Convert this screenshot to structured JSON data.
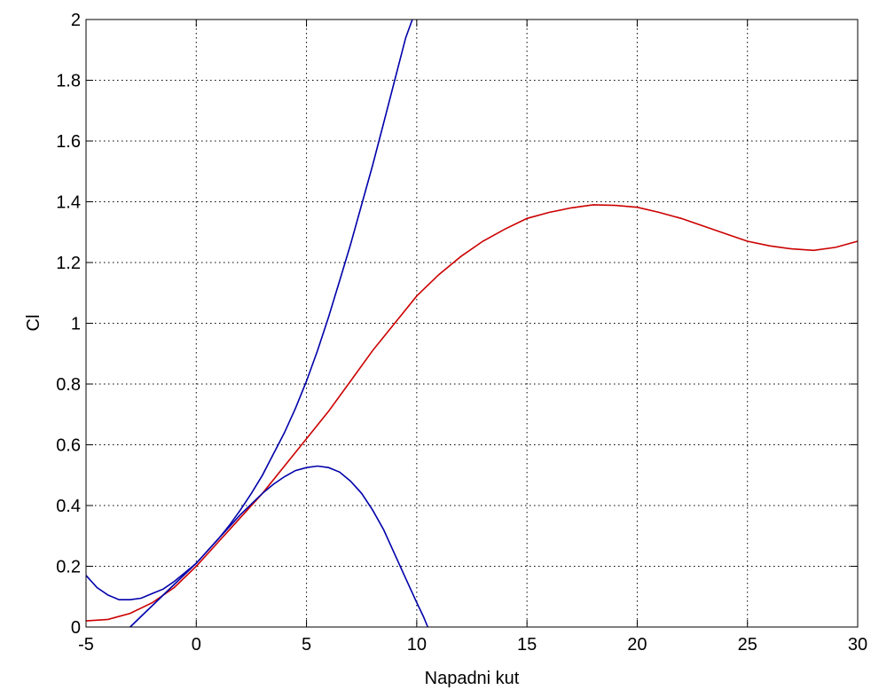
{
  "chart_data": {
    "type": "line",
    "title": "",
    "xlabel": "Napadni kut",
    "ylabel": "Cl",
    "xlim": [
      -5,
      30
    ],
    "ylim": [
      0,
      2
    ],
    "xticks": [
      -5,
      0,
      5,
      10,
      15,
      20,
      25,
      30
    ],
    "xtick_labels": [
      "-5",
      "0",
      "5",
      "10",
      "15",
      "20",
      "25",
      "30"
    ],
    "yticks": [
      0,
      0.2,
      0.4,
      0.6,
      0.8,
      1,
      1.2,
      1.4,
      1.6,
      1.8,
      2
    ],
    "ytick_labels": [
      "0",
      "0.2",
      "0.4",
      "0.6",
      "0.8",
      "1",
      "1.2",
      "1.4",
      "1.6",
      "1.8",
      "2"
    ],
    "grid": true,
    "colors": {
      "red": "#cc0000",
      "blue": "#0000aa",
      "grid": "#000000",
      "axes": "#000000"
    },
    "series": [
      {
        "color": "#cc0000",
        "x": [
          -5,
          -4,
          -3,
          -2,
          -1,
          0,
          1,
          2,
          3,
          4,
          5,
          6,
          7,
          8,
          9,
          10,
          11,
          12,
          13,
          14,
          15,
          16,
          17,
          18,
          19,
          20,
          21,
          22,
          23,
          24,
          25,
          26,
          27,
          28,
          29,
          30
        ],
        "y": [
          0.02,
          0.025,
          0.045,
          0.08,
          0.13,
          0.2,
          0.28,
          0.36,
          0.44,
          0.53,
          0.62,
          0.71,
          0.81,
          0.91,
          1.0,
          1.09,
          1.16,
          1.22,
          1.27,
          1.31,
          1.345,
          1.365,
          1.38,
          1.39,
          1.388,
          1.382,
          1.365,
          1.345,
          1.32,
          1.295,
          1.27,
          1.255,
          1.245,
          1.24,
          1.25,
          1.27
        ]
      },
      {
        "color": "#0000aa",
        "x": [
          -5,
          -4.5,
          -4,
          -3.5,
          -3,
          -2.5,
          -2,
          -1.5,
          -1,
          -0.5,
          0,
          0.5,
          1,
          1.5,
          2,
          2.5,
          3,
          3.5,
          4,
          4.5,
          5,
          5.5,
          6,
          6.5,
          7,
          7.5,
          8,
          8.5,
          9,
          9.5,
          9.8
        ],
        "y": [
          0.17,
          0.13,
          0.105,
          0.09,
          0.09,
          0.095,
          0.11,
          0.125,
          0.15,
          0.18,
          0.21,
          0.25,
          0.29,
          0.335,
          0.385,
          0.44,
          0.5,
          0.57,
          0.64,
          0.72,
          0.81,
          0.91,
          1.02,
          1.14,
          1.26,
          1.39,
          1.52,
          1.66,
          1.8,
          1.94,
          2.0
        ]
      },
      {
        "color": "#0000aa",
        "x": [
          -3,
          -2.5,
          -2,
          -1.5,
          -1,
          -0.5,
          0,
          0.5,
          1,
          1.5,
          2,
          2.5,
          3,
          3.5,
          4,
          4.5,
          5,
          5.5,
          6,
          6.5,
          7,
          7.5,
          8,
          8.5,
          9,
          9.5,
          10,
          10.3,
          10.5
        ],
        "y": [
          0.0,
          0.035,
          0.07,
          0.105,
          0.14,
          0.175,
          0.21,
          0.25,
          0.29,
          0.33,
          0.37,
          0.405,
          0.44,
          0.47,
          0.495,
          0.515,
          0.525,
          0.53,
          0.525,
          0.51,
          0.48,
          0.44,
          0.385,
          0.32,
          0.24,
          0.16,
          0.08,
          0.035,
          0.0
        ]
      }
    ]
  }
}
